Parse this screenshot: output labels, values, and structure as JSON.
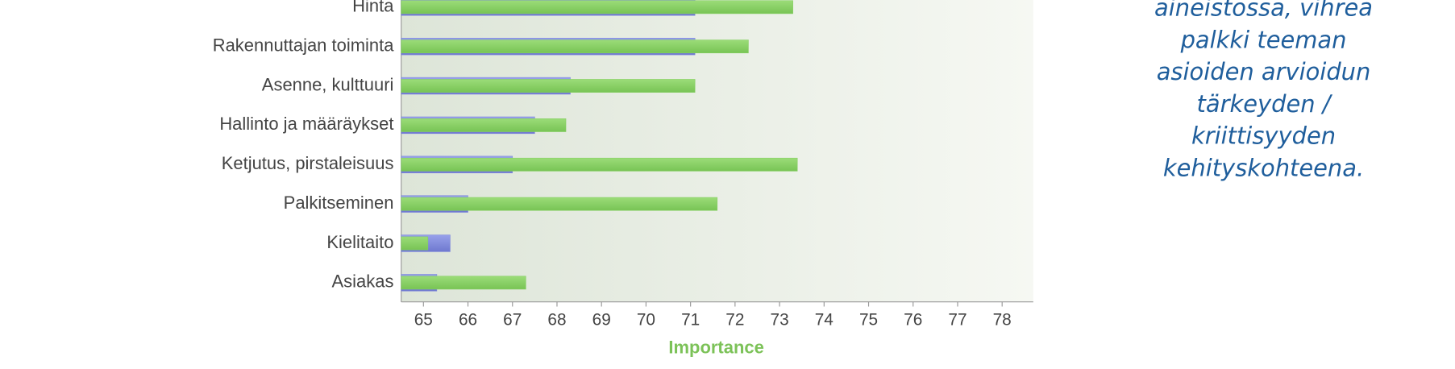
{
  "chart_data": {
    "type": "bar",
    "orientation": "horizontal",
    "categories": [
      "Hinta",
      "Rakennuttajan toiminta",
      "Asenne, kulttuuri",
      "Hallinto ja määräykset",
      "Ketjutus, pirstaleisuus",
      "Palkitseminen",
      "Kielitaito",
      "Asiakas"
    ],
    "series": [
      {
        "color": "#7f89dc",
        "values": [
          71.1,
          71.1,
          68.3,
          67.5,
          67.0,
          66.0,
          65.6,
          65.3
        ]
      },
      {
        "color": "#86cf62",
        "values": [
          73.3,
          72.3,
          71.1,
          68.2,
          73.4,
          71.6,
          65.1,
          67.3
        ]
      }
    ],
    "x_label": "Importance",
    "xlim": [
      64.5,
      78.7
    ],
    "xticks": [
      65,
      66,
      67,
      68,
      69,
      70,
      71,
      72,
      73,
      74,
      75,
      76,
      77,
      78
    ],
    "annotation_lines": [
      "aineistossa, vihreä",
      "palkki teeman",
      "asioiden arvioidun",
      "tärkeyden /",
      "kriittisyyden",
      "kehityskohteena."
    ]
  }
}
